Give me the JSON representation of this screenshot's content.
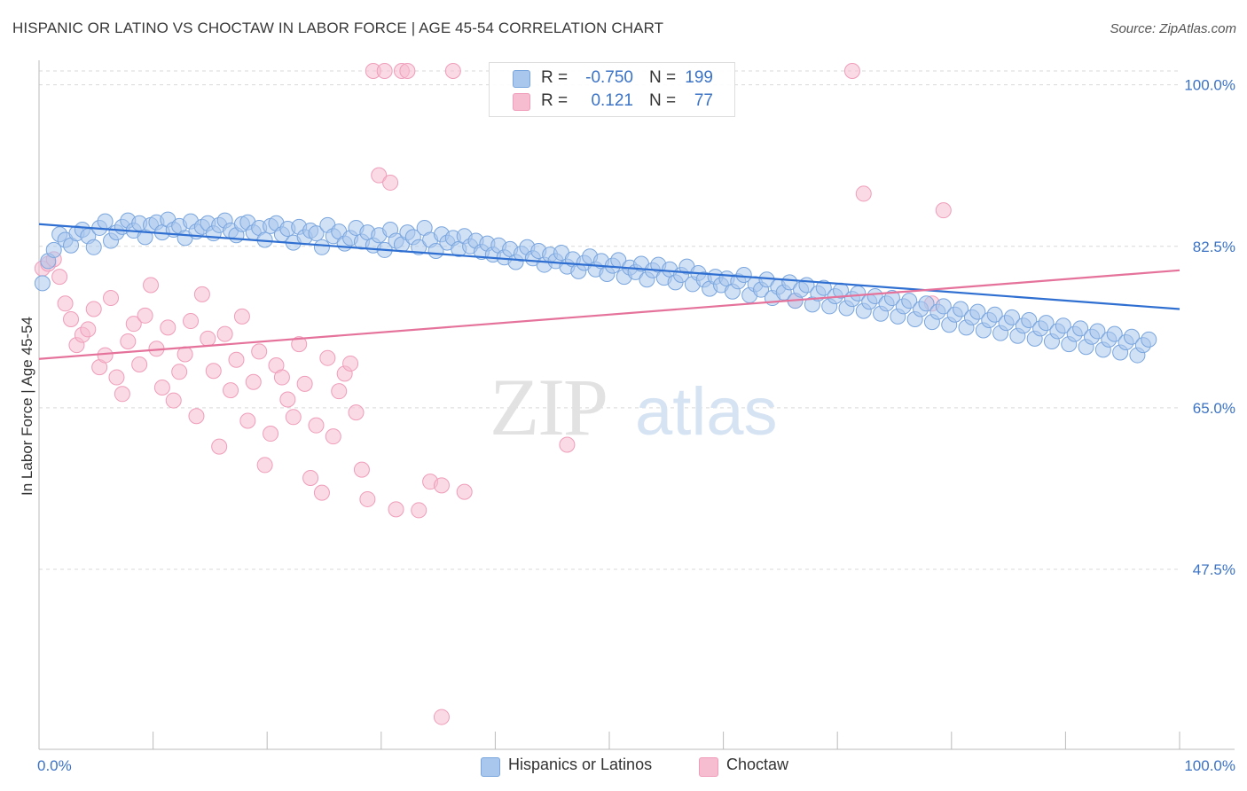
{
  "header": {
    "title": "HISPANIC OR LATINO VS CHOCTAW IN LABOR FORCE | AGE 45-54 CORRELATION CHART",
    "source": "Source: ZipAtlas.com"
  },
  "watermark": {
    "zip": "ZIP",
    "atlas": "atlas"
  },
  "legend": {
    "rows": [
      {
        "r_label": "R =",
        "r_value": "-0.750",
        "n_label": "N =",
        "n_value": "199"
      },
      {
        "r_label": "R =",
        "r_value": "0.121",
        "n_label": "N =",
        "n_value": "77"
      }
    ]
  },
  "bottom_legend": {
    "series1": "Hispanics or Latinos",
    "series2": "Choctaw"
  },
  "colors": {
    "blue_fill": "#a9c6ec",
    "blue_stroke": "#7aa6de",
    "blue_line": "#2f6fd1",
    "pink_fill": "#f6bcd0",
    "pink_stroke": "#ef9dba",
    "pink_line": "#e5729a",
    "tick_label": "#3b73c6",
    "grid": "#d9d9d9"
  },
  "chart_data": {
    "type": "scatter",
    "title": "HISPANIC OR LATINO VS CHOCTAW IN LABOR FORCE | AGE 45-54 CORRELATION CHART",
    "xlabel": "",
    "ylabel": "In Labor Force | Age 45-54",
    "xlim": [
      0,
      100
    ],
    "ylim": [
      28,
      101.5
    ],
    "x_tick_labels": [
      "0.0%",
      "100.0%"
    ],
    "y_ticks": [
      47.5,
      65.0,
      82.5,
      100.0
    ],
    "y_tick_labels": [
      "47.5%",
      "65.0%",
      "82.5%",
      "100.0%"
    ],
    "grid": true,
    "legend_position": "top-center",
    "series": [
      {
        "name": "Hispanics or Latinos",
        "trend": {
          "x": [
            0,
            100
          ],
          "y": [
            84.9,
            75.7
          ]
        },
        "points": [
          [
            0.3,
            78.5
          ],
          [
            0.8,
            80.9
          ],
          [
            1.3,
            82.1
          ],
          [
            1.8,
            83.8
          ],
          [
            2.3,
            83.2
          ],
          [
            2.8,
            82.6
          ],
          [
            3.3,
            83.9
          ],
          [
            3.8,
            84.3
          ],
          [
            4.3,
            83.6
          ],
          [
            4.8,
            82.4
          ],
          [
            5.3,
            84.5
          ],
          [
            5.8,
            85.2
          ],
          [
            6.3,
            83.1
          ],
          [
            6.8,
            84.0
          ],
          [
            7.3,
            84.6
          ],
          [
            7.8,
            85.3
          ],
          [
            8.3,
            84.2
          ],
          [
            8.8,
            85.0
          ],
          [
            9.3,
            83.5
          ],
          [
            9.8,
            84.8
          ],
          [
            10.3,
            85.1
          ],
          [
            10.8,
            84.0
          ],
          [
            11.3,
            85.4
          ],
          [
            11.8,
            84.3
          ],
          [
            12.3,
            84.7
          ],
          [
            12.8,
            83.4
          ],
          [
            13.3,
            85.2
          ],
          [
            13.8,
            84.1
          ],
          [
            14.3,
            84.6
          ],
          [
            14.8,
            85.0
          ],
          [
            15.3,
            83.9
          ],
          [
            15.8,
            84.8
          ],
          [
            16.3,
            85.3
          ],
          [
            16.8,
            84.2
          ],
          [
            17.3,
            83.7
          ],
          [
            17.8,
            84.9
          ],
          [
            18.3,
            85.1
          ],
          [
            18.8,
            84.0
          ],
          [
            19.3,
            84.5
          ],
          [
            19.8,
            83.2
          ],
          [
            20.3,
            84.7
          ],
          [
            20.8,
            85.0
          ],
          [
            21.3,
            83.8
          ],
          [
            21.8,
            84.4
          ],
          [
            22.3,
            82.9
          ],
          [
            22.8,
            84.6
          ],
          [
            23.3,
            83.5
          ],
          [
            23.8,
            84.2
          ],
          [
            24.3,
            83.9
          ],
          [
            24.8,
            82.4
          ],
          [
            25.3,
            84.8
          ],
          [
            25.8,
            83.6
          ],
          [
            26.3,
            84.1
          ],
          [
            26.8,
            82.8
          ],
          [
            27.3,
            83.4
          ],
          [
            27.8,
            84.5
          ],
          [
            28.3,
            83.0
          ],
          [
            28.8,
            84.0
          ],
          [
            29.3,
            82.6
          ],
          [
            29.8,
            83.7
          ],
          [
            30.3,
            82.1
          ],
          [
            30.8,
            84.3
          ],
          [
            31.3,
            83.1
          ],
          [
            31.8,
            82.7
          ],
          [
            32.3,
            84.0
          ],
          [
            32.8,
            83.5
          ],
          [
            33.3,
            82.4
          ],
          [
            33.8,
            84.5
          ],
          [
            34.3,
            83.2
          ],
          [
            34.8,
            82.0
          ],
          [
            35.3,
            83.8
          ],
          [
            35.8,
            82.9
          ],
          [
            36.3,
            83.4
          ],
          [
            36.8,
            82.2
          ],
          [
            37.3,
            83.6
          ],
          [
            37.8,
            82.5
          ],
          [
            38.3,
            83.1
          ],
          [
            38.8,
            81.9
          ],
          [
            39.3,
            82.8
          ],
          [
            39.8,
            81.6
          ],
          [
            40.3,
            82.6
          ],
          [
            40.8,
            81.3
          ],
          [
            41.3,
            82.2
          ],
          [
            41.8,
            80.8
          ],
          [
            42.3,
            81.7
          ],
          [
            42.8,
            82.4
          ],
          [
            43.3,
            81.2
          ],
          [
            43.8,
            82.0
          ],
          [
            44.3,
            80.5
          ],
          [
            44.8,
            81.6
          ],
          [
            45.3,
            80.9
          ],
          [
            45.8,
            81.8
          ],
          [
            46.3,
            80.3
          ],
          [
            46.8,
            81.1
          ],
          [
            47.3,
            79.8
          ],
          [
            47.8,
            80.7
          ],
          [
            48.3,
            81.4
          ],
          [
            48.8,
            80.0
          ],
          [
            49.3,
            80.9
          ],
          [
            49.8,
            79.5
          ],
          [
            50.3,
            80.4
          ],
          [
            50.8,
            81.0
          ],
          [
            51.3,
            79.2
          ],
          [
            51.8,
            80.2
          ],
          [
            52.3,
            79.7
          ],
          [
            52.8,
            80.6
          ],
          [
            53.3,
            78.9
          ],
          [
            53.8,
            79.9
          ],
          [
            54.3,
            80.5
          ],
          [
            54.8,
            79.1
          ],
          [
            55.3,
            80.0
          ],
          [
            55.8,
            78.6
          ],
          [
            56.3,
            79.4
          ],
          [
            56.8,
            80.3
          ],
          [
            57.3,
            78.4
          ],
          [
            57.8,
            79.6
          ],
          [
            58.3,
            78.9
          ],
          [
            58.8,
            77.9
          ],
          [
            59.3,
            79.2
          ],
          [
            59.8,
            78.3
          ],
          [
            60.3,
            79.0
          ],
          [
            60.8,
            77.6
          ],
          [
            61.3,
            78.7
          ],
          [
            61.8,
            79.4
          ],
          [
            62.3,
            77.2
          ],
          [
            62.8,
            78.4
          ],
          [
            63.3,
            77.8
          ],
          [
            63.8,
            78.9
          ],
          [
            64.3,
            76.9
          ],
          [
            64.8,
            78.1
          ],
          [
            65.3,
            77.5
          ],
          [
            65.8,
            78.6
          ],
          [
            66.3,
            76.6
          ],
          [
            66.8,
            77.8
          ],
          [
            67.3,
            78.3
          ],
          [
            67.8,
            76.2
          ],
          [
            68.3,
            77.4
          ],
          [
            68.8,
            78.0
          ],
          [
            69.3,
            76.0
          ],
          [
            69.8,
            77.1
          ],
          [
            70.3,
            77.7
          ],
          [
            70.8,
            75.8
          ],
          [
            71.3,
            76.8
          ],
          [
            71.8,
            77.4
          ],
          [
            72.3,
            75.5
          ],
          [
            72.8,
            76.5
          ],
          [
            73.3,
            77.1
          ],
          [
            73.8,
            75.2
          ],
          [
            74.3,
            76.3
          ],
          [
            74.8,
            76.9
          ],
          [
            75.3,
            74.9
          ],
          [
            75.8,
            76.0
          ],
          [
            76.3,
            76.6
          ],
          [
            76.8,
            74.6
          ],
          [
            77.3,
            75.7
          ],
          [
            77.8,
            76.3
          ],
          [
            78.3,
            74.3
          ],
          [
            78.8,
            75.4
          ],
          [
            79.3,
            76.0
          ],
          [
            79.8,
            74.0
          ],
          [
            80.3,
            75.1
          ],
          [
            80.8,
            75.7
          ],
          [
            81.3,
            73.7
          ],
          [
            81.8,
            74.8
          ],
          [
            82.3,
            75.4
          ],
          [
            82.8,
            73.4
          ],
          [
            83.3,
            74.5
          ],
          [
            83.8,
            75.1
          ],
          [
            84.3,
            73.1
          ],
          [
            84.8,
            74.2
          ],
          [
            85.3,
            74.8
          ],
          [
            85.8,
            72.8
          ],
          [
            86.3,
            73.9
          ],
          [
            86.8,
            74.5
          ],
          [
            87.3,
            72.5
          ],
          [
            87.8,
            73.6
          ],
          [
            88.3,
            74.2
          ],
          [
            88.8,
            72.2
          ],
          [
            89.3,
            73.3
          ],
          [
            89.8,
            73.9
          ],
          [
            90.3,
            71.9
          ],
          [
            90.8,
            73.0
          ],
          [
            91.3,
            73.6
          ],
          [
            91.8,
            71.6
          ],
          [
            92.3,
            72.7
          ],
          [
            92.8,
            73.3
          ],
          [
            93.3,
            71.3
          ],
          [
            93.8,
            72.4
          ],
          [
            94.3,
            73.0
          ],
          [
            94.8,
            71.0
          ],
          [
            95.3,
            72.1
          ],
          [
            95.8,
            72.7
          ],
          [
            96.3,
            70.7
          ],
          [
            96.8,
            71.8
          ],
          [
            97.3,
            72.4
          ]
        ]
      },
      {
        "name": "Choctaw",
        "trend": {
          "x": [
            0,
            100
          ],
          "y": [
            70.3,
            79.9
          ]
        },
        "points": [
          [
            0.3,
            80.1
          ],
          [
            0.8,
            80.6
          ],
          [
            1.3,
            81.1
          ],
          [
            1.8,
            79.2
          ],
          [
            2.3,
            76.3
          ],
          [
            2.8,
            74.6
          ],
          [
            3.3,
            71.8
          ],
          [
            3.8,
            72.9
          ],
          [
            4.3,
            73.5
          ],
          [
            4.8,
            75.7
          ],
          [
            5.3,
            69.4
          ],
          [
            5.8,
            70.7
          ],
          [
            6.3,
            76.9
          ],
          [
            6.8,
            68.3
          ],
          [
            7.3,
            66.5
          ],
          [
            7.8,
            72.2
          ],
          [
            8.3,
            74.1
          ],
          [
            8.8,
            69.7
          ],
          [
            9.3,
            75.0
          ],
          [
            9.8,
            78.3
          ],
          [
            10.3,
            71.4
          ],
          [
            10.8,
            67.2
          ],
          [
            11.3,
            73.7
          ],
          [
            11.8,
            65.8
          ],
          [
            12.3,
            68.9
          ],
          [
            12.8,
            70.8
          ],
          [
            13.3,
            74.4
          ],
          [
            13.8,
            64.1
          ],
          [
            14.3,
            77.3
          ],
          [
            14.8,
            72.5
          ],
          [
            15.3,
            69.0
          ],
          [
            15.8,
            60.8
          ],
          [
            16.3,
            73.0
          ],
          [
            16.8,
            66.9
          ],
          [
            17.3,
            70.2
          ],
          [
            17.8,
            74.9
          ],
          [
            18.3,
            63.6
          ],
          [
            18.8,
            67.8
          ],
          [
            19.3,
            71.1
          ],
          [
            19.8,
            58.8
          ],
          [
            20.3,
            62.2
          ],
          [
            20.8,
            69.6
          ],
          [
            21.3,
            68.3
          ],
          [
            21.8,
            65.9
          ],
          [
            22.3,
            64.0
          ],
          [
            22.8,
            71.9
          ],
          [
            23.3,
            67.6
          ],
          [
            23.8,
            57.4
          ],
          [
            24.3,
            63.1
          ],
          [
            24.8,
            55.8
          ],
          [
            25.3,
            70.4
          ],
          [
            25.8,
            61.9
          ],
          [
            26.3,
            66.8
          ],
          [
            26.8,
            68.7
          ],
          [
            27.3,
            69.8
          ],
          [
            27.8,
            64.5
          ],
          [
            28.3,
            58.3
          ],
          [
            28.8,
            55.1
          ],
          [
            29.3,
            101.5
          ],
          [
            29.8,
            90.2
          ],
          [
            30.3,
            101.5
          ],
          [
            30.8,
            89.4
          ],
          [
            31.3,
            54.0
          ],
          [
            31.8,
            101.5
          ],
          [
            32.3,
            101.5
          ],
          [
            33.3,
            53.9
          ],
          [
            34.3,
            57.0
          ],
          [
            35.3,
            56.6
          ],
          [
            36.3,
            101.5
          ],
          [
            37.3,
            55.9
          ],
          [
            46.3,
            61.0
          ],
          [
            66.3,
            76.6
          ],
          [
            71.3,
            101.5
          ],
          [
            72.3,
            88.2
          ],
          [
            78.3,
            76.3
          ],
          [
            79.3,
            86.4
          ],
          [
            35.3,
            31.5
          ]
        ]
      }
    ]
  }
}
